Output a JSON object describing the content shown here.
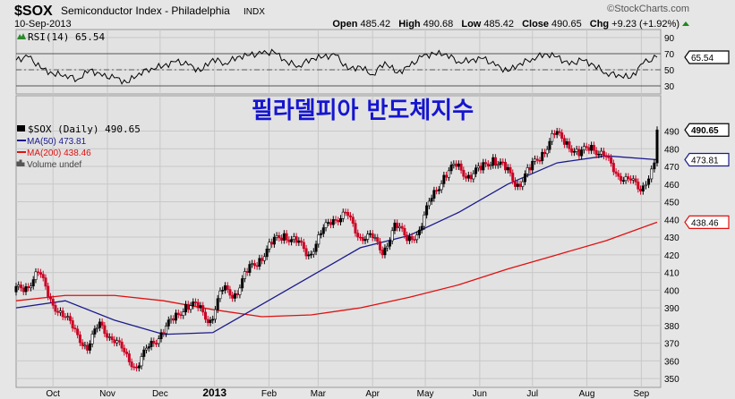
{
  "header": {
    "symbol": "$SOX",
    "name": "Semiconductor Index - Philadelphia",
    "exchange": "INDX",
    "date": "10-Sep-2013",
    "watermark": "©StockCharts.com",
    "open_label": "Open",
    "open": "485.42",
    "high_label": "High",
    "high": "490.68",
    "low_label": "Low",
    "low": "485.42",
    "close_label": "Close",
    "close": "490.65",
    "chg_label": "Chg",
    "chg": "+9.23 (+1.92%)",
    "chg_icon": "up-triangle-icon"
  },
  "overlay_title": "필라델피아 반도체지수",
  "colors": {
    "up": "#000000",
    "down": "#cc0022",
    "ma50": "#1a1a8c",
    "ma200": "#e01010",
    "rsi": "#000000",
    "accent_up": "#1a8a1a"
  },
  "chart_data": [
    {
      "type": "line",
      "panel": "RSI",
      "legend": "RSI(14) 65.54",
      "ylim": [
        20,
        100
      ],
      "yticks": [
        30,
        50,
        70,
        90
      ],
      "reference_lines": [
        30,
        50,
        70
      ],
      "last_label": "65.54",
      "values": [
        62,
        66,
        52,
        45,
        44,
        38,
        50,
        42,
        40,
        34,
        46,
        52,
        55,
        60,
        56,
        48,
        64,
        58,
        66,
        68,
        70,
        72,
        60,
        55,
        64,
        66,
        68,
        50,
        54,
        44,
        60,
        46,
        54,
        66,
        70,
        70,
        60,
        62,
        64,
        55,
        48,
        58,
        64,
        70,
        66,
        56,
        62,
        56,
        46,
        44,
        40,
        58,
        65.54
      ]
    },
    {
      "type": "candlestick",
      "panel": "price",
      "legend": {
        "price": "$SOX (Daily) 490.65",
        "ma50": "MA(50) 473.81",
        "ma200": "MA(200) 438.46",
        "volume": "Volume undef"
      },
      "ylim": [
        345,
        510
      ],
      "yticks": [
        350,
        360,
        370,
        380,
        390,
        400,
        410,
        420,
        430,
        440,
        450,
        460,
        470,
        480,
        490
      ],
      "x_labels": [
        {
          "label": "Oct",
          "date": "2012-10-01"
        },
        {
          "label": "Nov",
          "date": "2012-11-01"
        },
        {
          "label": "Dec",
          "date": "2012-12-01"
        },
        {
          "label": "2013",
          "date": "2013-01-01"
        },
        {
          "label": "Feb",
          "date": "2013-02-01"
        },
        {
          "label": "Mar",
          "date": "2013-03-01"
        },
        {
          "label": "Apr",
          "date": "2013-04-01"
        },
        {
          "label": "May",
          "date": "2013-05-01"
        },
        {
          "label": "Jun",
          "date": "2013-06-01"
        },
        {
          "label": "Jul",
          "date": "2013-07-01"
        },
        {
          "label": "Aug",
          "date": "2013-08-01"
        },
        {
          "label": "Sep",
          "date": "2013-09-01"
        }
      ],
      "x": [
        "2012-09-10",
        "2012-09-17",
        "2012-09-24",
        "2012-10-01",
        "2012-10-08",
        "2012-10-15",
        "2012-10-22",
        "2012-10-29",
        "2012-11-05",
        "2012-11-12",
        "2012-11-19",
        "2012-11-26",
        "2012-12-03",
        "2012-12-10",
        "2012-12-17",
        "2012-12-24",
        "2012-12-31",
        "2013-01-07",
        "2013-01-14",
        "2013-01-21",
        "2013-01-28",
        "2013-02-04",
        "2013-02-11",
        "2013-02-18",
        "2013-02-25",
        "2013-03-04",
        "2013-03-11",
        "2013-03-18",
        "2013-03-25",
        "2013-04-01",
        "2013-04-08",
        "2013-04-15",
        "2013-04-22",
        "2013-04-29",
        "2013-05-06",
        "2013-05-13",
        "2013-05-20",
        "2013-05-27",
        "2013-06-03",
        "2013-06-10",
        "2013-06-17",
        "2013-06-24",
        "2013-07-01",
        "2013-07-08",
        "2013-07-15",
        "2013-07-22",
        "2013-07-29",
        "2013-08-05",
        "2013-08-12",
        "2013-08-19",
        "2013-08-26",
        "2013-09-02",
        "2013-09-10"
      ],
      "close": [
        402,
        410,
        395,
        385,
        378,
        366,
        382,
        372,
        365,
        356,
        368,
        376,
        383,
        392,
        390,
        383,
        400,
        398,
        410,
        418,
        426,
        432,
        427,
        420,
        432,
        440,
        444,
        430,
        432,
        420,
        438,
        428,
        434,
        452,
        465,
        470,
        465,
        468,
        475,
        468,
        460,
        468,
        478,
        488,
        484,
        476,
        482,
        476,
        466,
        463,
        456,
        472,
        490.65
      ],
      "ma50": {
        "dates": [
          "2012-09-10",
          "2012-10-08",
          "2012-11-05",
          "2012-12-03",
          "2012-12-31",
          "2013-01-28",
          "2013-02-25",
          "2013-03-25",
          "2013-04-22",
          "2013-05-20",
          "2013-06-17",
          "2013-07-15",
          "2013-08-12",
          "2013-09-10"
        ],
        "values": [
          390,
          394,
          383,
          375,
          376,
          392,
          408,
          424,
          431,
          444,
          460,
          472,
          476,
          473.81
        ]
      },
      "ma200": {
        "dates": [
          "2012-09-10",
          "2012-10-08",
          "2012-11-05",
          "2012-12-03",
          "2012-12-31",
          "2013-01-28",
          "2013-02-25",
          "2013-03-25",
          "2013-04-22",
          "2013-05-20",
          "2013-06-17",
          "2013-07-15",
          "2013-08-12",
          "2013-09-10"
        ],
        "values": [
          394,
          397,
          397,
          394,
          389,
          385,
          386,
          390,
          396,
          403,
          412,
          420,
          428,
          438.46
        ]
      },
      "last_labels": {
        "price": "490.65",
        "ma50": "473.81",
        "ma200": "438.46"
      }
    }
  ]
}
